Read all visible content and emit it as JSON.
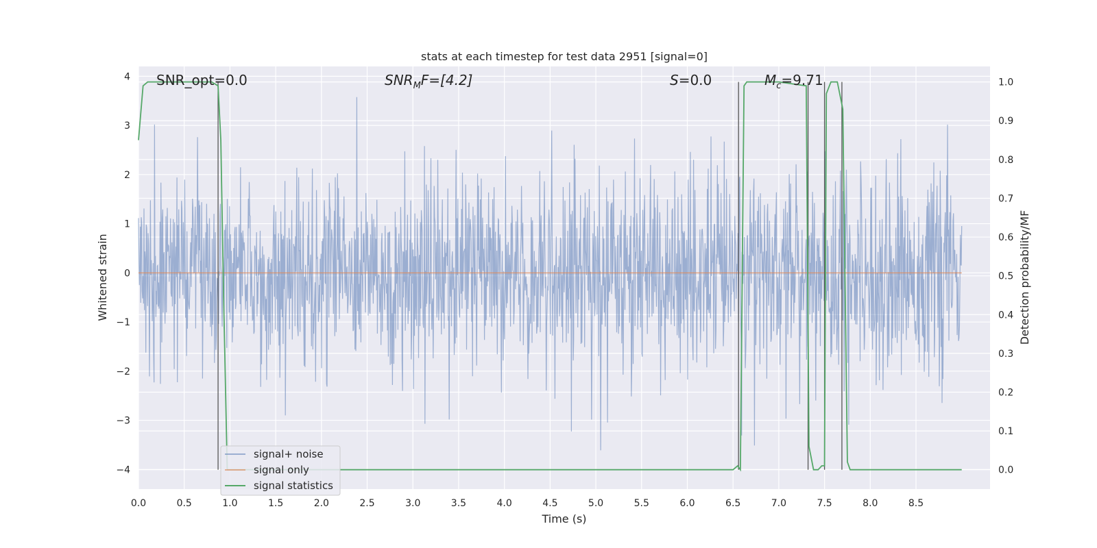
{
  "chart_data": {
    "type": "line",
    "title": "stats at each timestep for test data 2951 [signal=0]",
    "xlabel": "Time (s)",
    "ylabel": "Whitened strain",
    "ylabel_right": "Detection probability/MF",
    "xlim": [
      0.0,
      9.0
    ],
    "ylim": [
      -4.4,
      4.2
    ],
    "ylim_right": [
      -0.05,
      1.04
    ],
    "x_ticks": [
      "0.0",
      "0.5",
      "1.0",
      "1.5",
      "2.0",
      "2.5",
      "3.0",
      "3.5",
      "4.0",
      "4.5",
      "5.0",
      "5.5",
      "6.0",
      "6.5",
      "7.0",
      "7.5",
      "8.0",
      "8.5"
    ],
    "y_ticks": [
      "−4",
      "−3",
      "−2",
      "−1",
      "0",
      "1",
      "2",
      "3",
      "4"
    ],
    "y_ticks_right": [
      "0.0",
      "0.1",
      "0.2",
      "0.3",
      "0.4",
      "0.5",
      "0.6",
      "0.7",
      "0.8",
      "0.9",
      "1.0"
    ],
    "grid": true,
    "legend_position": "lower-left",
    "annotations": {
      "snr_opt": "SNR_opt=0.0",
      "snr_mf_base": "SNR",
      "snr_mf_sub": "M",
      "snr_mf_rest": "F=[4.2]",
      "s_italic": "S",
      "s_rest": "=0.0",
      "mc_base": "M",
      "mc_sub": "c",
      "mc_rest": "=9.71"
    },
    "series": [
      {
        "name": "signal+ noise",
        "color": "#4c72b0",
        "kind": "noise",
        "amplitude_std": 1.0,
        "peak_range": [
          -4.0,
          3.9
        ]
      },
      {
        "name": "signal only",
        "color": "#dd8452",
        "x": [
          0.0,
          9.0
        ],
        "y": [
          0.0,
          0.0
        ]
      },
      {
        "name": "signal statistics",
        "color": "#55a868",
        "axis": "right",
        "x": [
          0.0,
          0.05,
          0.1,
          0.5,
          0.8,
          0.87,
          0.9,
          0.93,
          0.97,
          1.0,
          1.5,
          2.0,
          3.0,
          4.0,
          5.0,
          6.0,
          6.5,
          6.55,
          6.58,
          6.62,
          6.65,
          7.0,
          7.3,
          7.33,
          7.38,
          7.43,
          7.47,
          7.5,
          7.52,
          7.57,
          7.64,
          7.7,
          7.75,
          7.78,
          7.82,
          8.0,
          8.5,
          9.0
        ],
        "y": [
          0.85,
          0.99,
          1.0,
          1.0,
          1.0,
          0.99,
          0.85,
          0.45,
          0.0,
          0.0,
          0.0,
          0.0,
          0.0,
          0.0,
          0.0,
          0.0,
          0.0,
          0.01,
          0.0,
          0.99,
          1.0,
          1.0,
          0.99,
          0.06,
          0.0,
          0.0,
          0.01,
          0.01,
          0.97,
          1.0,
          1.0,
          0.93,
          0.02,
          0.0,
          0.0,
          0.0,
          0.0,
          0.0
        ]
      }
    ],
    "vertical_markers": [
      0.87,
      6.56,
      7.32,
      7.5,
      7.69
    ]
  }
}
